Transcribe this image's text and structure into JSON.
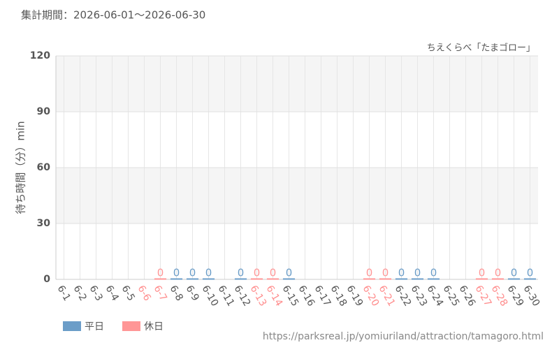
{
  "chart_data": {
    "type": "bar",
    "title": "集計期間：2026-06-01～2026-06-30",
    "subtitle": "ちえくらべ「たまゴロー」",
    "y_label": "待ち時間（分）min",
    "source": "https://parksreal.jp/yomiuriland/attraction/tamagoro.html",
    "categories": [
      "6-1",
      "6-2",
      "6-3",
      "6-4",
      "6-5",
      "6-6",
      "6-7",
      "6-8",
      "6-9",
      "6-10",
      "6-11",
      "6-12",
      "6-13",
      "6-14",
      "6-15",
      "6-16",
      "6-17",
      "6-18",
      "6-19",
      "6-20",
      "6-21",
      "6-22",
      "6-23",
      "6-24",
      "6-25",
      "6-26",
      "6-27",
      "6-28",
      "6-29",
      "6-30"
    ],
    "category_colors": [
      "#555",
      "#555",
      "#555",
      "#555",
      "#555",
      "#ff8c8c",
      "#ff8c8c",
      "#555",
      "#555",
      "#555",
      "#555",
      "#555",
      "#ff8c8c",
      "#ff8c8c",
      "#555",
      "#555",
      "#555",
      "#555",
      "#555",
      "#ff8c8c",
      "#ff8c8c",
      "#555",
      "#555",
      "#555",
      "#555",
      "#555",
      "#ff8c8c",
      "#ff8c8c",
      "#555",
      "#555"
    ],
    "series": [
      {
        "name": "平日",
        "color": "#6b9dc8",
        "values": [
          null,
          null,
          null,
          null,
          null,
          null,
          null,
          0,
          0,
          0,
          null,
          0,
          null,
          null,
          0,
          null,
          null,
          null,
          null,
          null,
          null,
          0,
          0,
          0,
          null,
          null,
          null,
          null,
          0,
          0
        ]
      },
      {
        "name": "休日",
        "color": "#ff9696",
        "values": [
          null,
          null,
          null,
          null,
          null,
          null,
          0,
          null,
          null,
          null,
          null,
          null,
          0,
          0,
          null,
          null,
          null,
          null,
          null,
          0,
          0,
          null,
          null,
          null,
          null,
          null,
          0,
          0,
          null,
          null
        ]
      }
    ],
    "ylim": [
      0,
      120
    ],
    "yticks": [
      0,
      30,
      60,
      90,
      120
    ],
    "grid": true
  }
}
